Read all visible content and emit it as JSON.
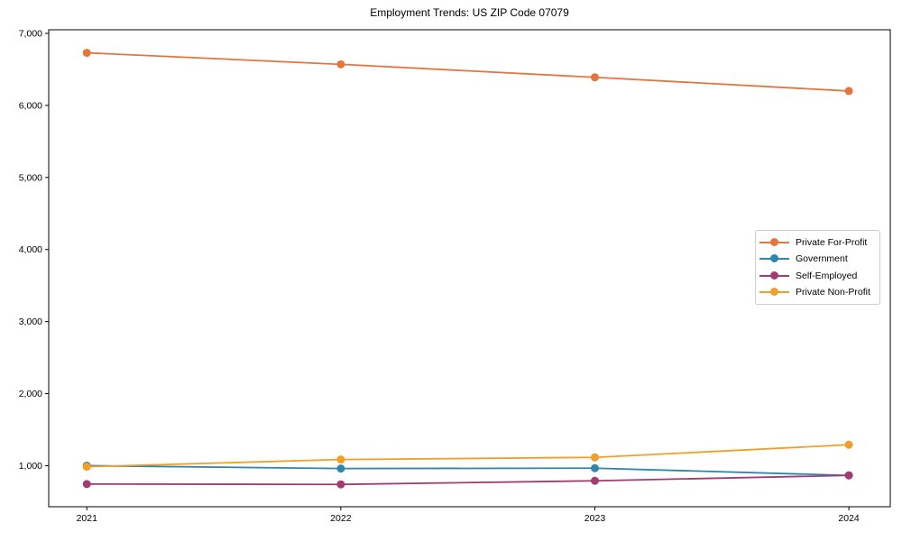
{
  "title": "Employment Trends: US ZIP Code 07079",
  "chart_data": {
    "type": "line",
    "title": "Employment Trends: US ZIP Code 07079",
    "xlabel": "",
    "ylabel": "",
    "x": [
      2021,
      2022,
      2023,
      2024
    ],
    "x_tick_labels": [
      "2021",
      "2022",
      "2023",
      "2024"
    ],
    "series": [
      {
        "name": "Private For-Profit",
        "color": "#E2763E",
        "values": [
          6730,
          6570,
          6390,
          6200
        ]
      },
      {
        "name": "Government",
        "color": "#2E86AB",
        "values": [
          1000,
          960,
          965,
          865
        ]
      },
      {
        "name": "Self-Employed",
        "color": "#A23B72",
        "values": [
          745,
          740,
          790,
          865
        ]
      },
      {
        "name": "Private Non-Profit",
        "color": "#F0A028",
        "values": [
          985,
          1085,
          1115,
          1290
        ]
      }
    ],
    "y_ticks": [
      1000,
      2000,
      3000,
      4000,
      5000,
      6000,
      7000
    ],
    "ylim": [
      430,
      7050
    ],
    "xlim": [
      2020.85,
      2024.163
    ],
    "grid": false,
    "legend_position": "center right",
    "frame": "full-box",
    "spine_color": "#000000"
  }
}
